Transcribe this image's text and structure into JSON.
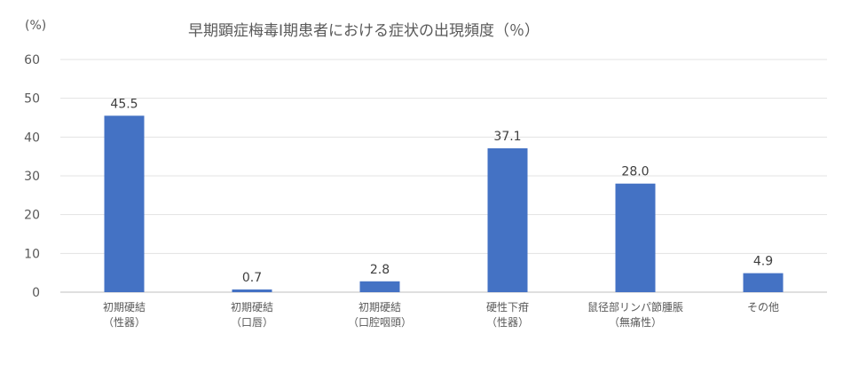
{
  "chart_data": {
    "type": "bar",
    "title": "早期顕症梅毒Ⅰ期患者における症状の出現頻度（％）",
    "unit_label": "(%)",
    "xlabel": "",
    "ylabel": "",
    "ylim": [
      0,
      60
    ],
    "yticks": [
      0,
      10,
      20,
      30,
      40,
      50,
      60
    ],
    "grid": true,
    "legend": "none",
    "bar_color": "#4472C4",
    "categories": [
      [
        "初期硬結",
        "（性器）"
      ],
      [
        "初期硬結",
        "（口唇）"
      ],
      [
        "初期硬結",
        "（口腔咽頭）"
      ],
      [
        "硬性下疳",
        "（性器）"
      ],
      [
        "鼠径部リンパ節腫脹",
        "（無痛性）"
      ],
      [
        "その他"
      ]
    ],
    "values": [
      45.5,
      0.7,
      2.8,
      37.1,
      28.0,
      4.9
    ],
    "value_labels": [
      "45.5",
      "0.7",
      "2.8",
      "37.1",
      "28.0",
      "4.9"
    ]
  }
}
